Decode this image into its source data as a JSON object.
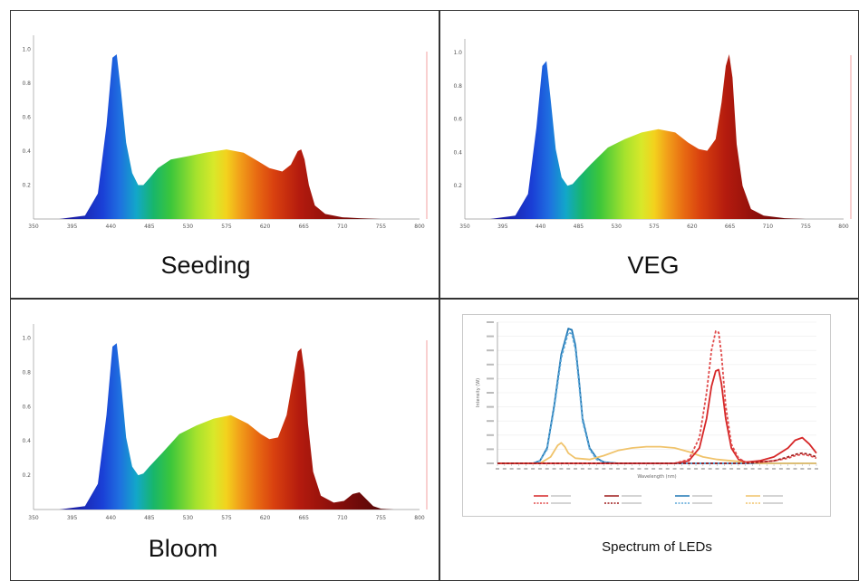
{
  "chart_data": [
    {
      "type": "area",
      "id": "seeding",
      "title": "Seeding",
      "x_ticks": [
        "350",
        "395",
        "440",
        "485",
        "530",
        "575",
        "620",
        "665",
        "710",
        "755",
        "800"
      ],
      "y_ticks": [
        "0.2",
        "0.4",
        "0.6",
        "0.8",
        "1.0"
      ],
      "xlim": [
        350,
        800
      ],
      "ylim": [
        0,
        1.05
      ],
      "x": [
        350,
        380,
        410,
        425,
        435,
        442,
        447,
        452,
        458,
        465,
        472,
        478,
        485,
        495,
        510,
        530,
        550,
        575,
        595,
        612,
        625,
        640,
        650,
        658,
        662,
        666,
        671,
        678,
        690,
        710,
        730,
        755,
        780,
        800
      ],
      "values": [
        0.0,
        0.0,
        0.02,
        0.15,
        0.55,
        0.95,
        0.97,
        0.75,
        0.45,
        0.27,
        0.2,
        0.2,
        0.24,
        0.3,
        0.35,
        0.37,
        0.39,
        0.41,
        0.39,
        0.34,
        0.3,
        0.28,
        0.32,
        0.4,
        0.41,
        0.35,
        0.2,
        0.08,
        0.03,
        0.01,
        0.005,
        0.0,
        0.0,
        0.0
      ]
    },
    {
      "type": "area",
      "id": "veg",
      "title": "VEG",
      "x_ticks": [
        "350",
        "395",
        "440",
        "485",
        "530",
        "575",
        "620",
        "665",
        "710",
        "755",
        "800"
      ],
      "y_ticks": [
        "0.2",
        "0.4",
        "0.6",
        "0.8",
        "1.0"
      ],
      "xlim": [
        350,
        800
      ],
      "ylim": [
        0,
        1.05
      ],
      "x": [
        350,
        380,
        410,
        425,
        435,
        442,
        447,
        452,
        458,
        465,
        472,
        478,
        485,
        500,
        520,
        540,
        560,
        580,
        600,
        615,
        628,
        638,
        648,
        655,
        660,
        664,
        668,
        673,
        680,
        690,
        705,
        730,
        755,
        780,
        800
      ],
      "values": [
        0.0,
        0.0,
        0.02,
        0.15,
        0.55,
        0.92,
        0.95,
        0.72,
        0.42,
        0.25,
        0.2,
        0.21,
        0.25,
        0.33,
        0.43,
        0.48,
        0.52,
        0.54,
        0.52,
        0.46,
        0.42,
        0.41,
        0.48,
        0.7,
        0.92,
        0.99,
        0.85,
        0.45,
        0.2,
        0.06,
        0.02,
        0.005,
        0.0,
        0.0,
        0.0
      ]
    },
    {
      "type": "area",
      "id": "bloom",
      "title": "Bloom",
      "x_ticks": [
        "350",
        "395",
        "440",
        "485",
        "530",
        "575",
        "620",
        "665",
        "710",
        "755",
        "800"
      ],
      "y_ticks": [
        "0.2",
        "0.4",
        "0.6",
        "0.8",
        "1.0"
      ],
      "xlim": [
        350,
        800
      ],
      "ylim": [
        0,
        1.05
      ],
      "x": [
        350,
        380,
        410,
        425,
        435,
        442,
        447,
        452,
        458,
        465,
        472,
        478,
        485,
        500,
        520,
        540,
        560,
        580,
        600,
        615,
        625,
        635,
        645,
        652,
        658,
        662,
        666,
        670,
        676,
        685,
        700,
        712,
        722,
        730,
        738,
        746,
        755,
        770,
        800
      ],
      "values": [
        0.0,
        0.0,
        0.02,
        0.15,
        0.55,
        0.95,
        0.97,
        0.74,
        0.42,
        0.25,
        0.2,
        0.21,
        0.25,
        0.33,
        0.44,
        0.49,
        0.53,
        0.55,
        0.5,
        0.44,
        0.41,
        0.42,
        0.55,
        0.75,
        0.92,
        0.94,
        0.8,
        0.5,
        0.22,
        0.08,
        0.04,
        0.05,
        0.09,
        0.1,
        0.06,
        0.02,
        0.005,
        0.0,
        0.0
      ]
    },
    {
      "type": "line",
      "id": "leds",
      "title": "Spectrum of LEDs",
      "xlabel": "Wavelength (nm)",
      "ylabel": "Intensity (W)",
      "xlim": [
        350,
        800
      ],
      "ylim": [
        0,
        1.1
      ],
      "series": [
        {
          "color": "#1f77b4",
          "dashed": false,
          "x": [
            350,
            400,
            410,
            420,
            430,
            440,
            450,
            455,
            460,
            465,
            470,
            480,
            490,
            500,
            520,
            800
          ],
          "values": [
            0,
            0,
            0.02,
            0.12,
            0.45,
            0.85,
            1.05,
            1.04,
            0.92,
            0.65,
            0.35,
            0.12,
            0.04,
            0.01,
            0,
            0
          ]
        },
        {
          "color": "#5da7d8",
          "dashed": true,
          "x": [
            350,
            400,
            410,
            420,
            430,
            440,
            450,
            455,
            460,
            465,
            470,
            480,
            490,
            500,
            520,
            800
          ],
          "values": [
            0,
            0,
            0.02,
            0.11,
            0.43,
            0.82,
            1.02,
            1.01,
            0.89,
            0.62,
            0.33,
            0.11,
            0.03,
            0.01,
            0,
            0
          ]
        },
        {
          "color": "#f0c36b",
          "dashed": false,
          "x": [
            350,
            410,
            425,
            435,
            440,
            445,
            450,
            460,
            480,
            500,
            520,
            540,
            560,
            580,
            600,
            620,
            640,
            660,
            680,
            700,
            720,
            800
          ],
          "values": [
            0,
            0,
            0.05,
            0.14,
            0.16,
            0.13,
            0.08,
            0.04,
            0.03,
            0.06,
            0.1,
            0.12,
            0.13,
            0.13,
            0.12,
            0.09,
            0.05,
            0.03,
            0.02,
            0.01,
            0,
            0
          ]
        },
        {
          "color": "#d62728",
          "dashed": false,
          "x": [
            350,
            600,
            620,
            635,
            645,
            652,
            658,
            662,
            666,
            672,
            680,
            690,
            700,
            720,
            740,
            760,
            770,
            780,
            790,
            800
          ],
          "values": [
            0,
            0,
            0.02,
            0.12,
            0.35,
            0.6,
            0.72,
            0.73,
            0.62,
            0.35,
            0.12,
            0.03,
            0.01,
            0.02,
            0.05,
            0.12,
            0.18,
            0.2,
            0.15,
            0.08
          ]
        },
        {
          "color": "#e04b4b",
          "dashed": true,
          "x": [
            350,
            600,
            620,
            635,
            645,
            652,
            658,
            662,
            666,
            672,
            680,
            690,
            700,
            720,
            740,
            760,
            770,
            780,
            790,
            800
          ],
          "values": [
            0,
            0,
            0.03,
            0.2,
            0.55,
            0.88,
            1.03,
            1.02,
            0.85,
            0.45,
            0.15,
            0.04,
            0.01,
            0.01,
            0.02,
            0.04,
            0.06,
            0.07,
            0.06,
            0.04
          ]
        },
        {
          "color": "#9e1b1b",
          "dashed": true,
          "x": [
            350,
            700,
            740,
            760,
            770,
            780,
            790,
            800
          ],
          "values": [
            0,
            0,
            0.02,
            0.05,
            0.07,
            0.08,
            0.07,
            0.05
          ]
        }
      ],
      "legend": [
        {
          "color": "#d62728",
          "dashed": false
        },
        {
          "color": "#e04b4b",
          "dashed": true
        },
        {
          "color": "#9e1b1b",
          "dashed": false
        },
        {
          "color": "#9e1b1b",
          "dashed": true
        },
        {
          "color": "#1f77b4",
          "dashed": false
        },
        {
          "color": "#5da7d8",
          "dashed": true
        },
        {
          "color": "#f0c36b",
          "dashed": false
        },
        {
          "color": "#f0c36b",
          "dashed": true
        }
      ]
    }
  ]
}
